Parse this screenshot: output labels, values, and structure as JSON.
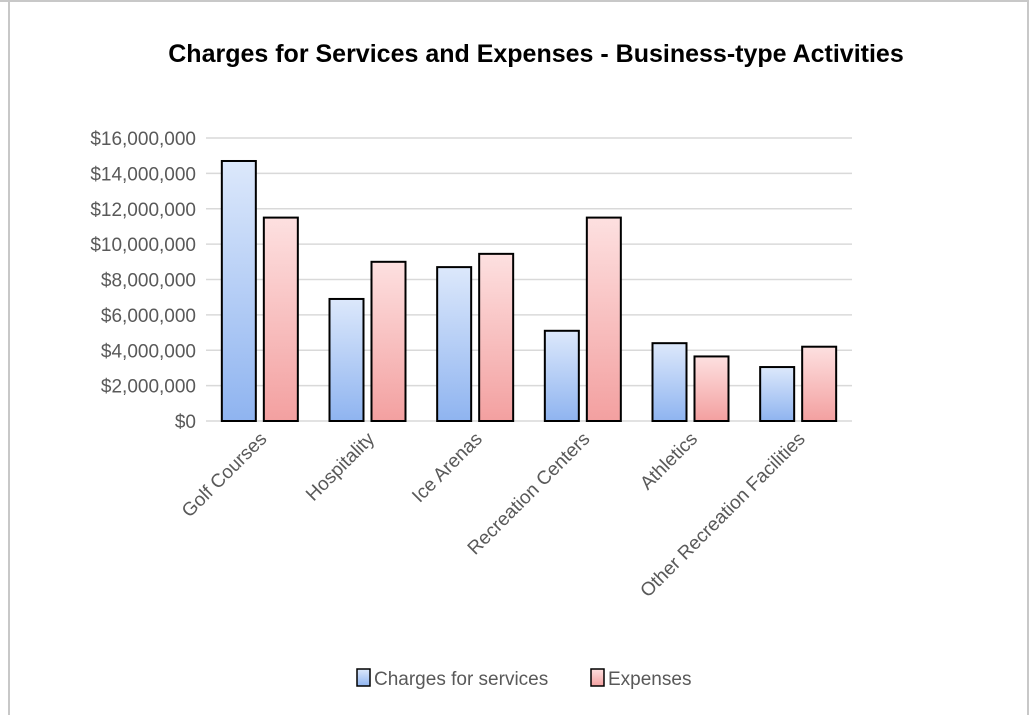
{
  "chart_data": {
    "type": "bar",
    "title": "Charges for Services and Expenses - Business-type  Activities",
    "xlabel": "",
    "ylabel": "",
    "categories": [
      "Golf Courses",
      "Hospitality",
      "Ice Arenas",
      "Recreation Centers",
      "Athletics",
      "Other Recreation Facilities"
    ],
    "series": [
      {
        "name": "Charges for services",
        "values": [
          14700000,
          6900000,
          8700000,
          5100000,
          4400000,
          3050000
        ]
      },
      {
        "name": "Expenses",
        "values": [
          11500000,
          9000000,
          9450000,
          11500000,
          3650000,
          4200000
        ]
      }
    ],
    "ylim": [
      0,
      16000000
    ],
    "yticks": [
      {
        "value": 0,
        "label": "$0"
      },
      {
        "value": 2000000,
        "label": "$2,000,000"
      },
      {
        "value": 4000000,
        "label": "$4,000,000"
      },
      {
        "value": 6000000,
        "label": "$6,000,000"
      },
      {
        "value": 8000000,
        "label": "$8,000,000"
      },
      {
        "value": 10000000,
        "label": "$10,000,000"
      },
      {
        "value": 12000000,
        "label": "$12,000,000"
      },
      {
        "value": 14000000,
        "label": "$14,000,000"
      },
      {
        "value": 16000000,
        "label": "$16,000,000"
      }
    ],
    "grid": true,
    "legend_position": "bottom",
    "colors": {
      "charges_top": "#dce8fb",
      "charges_bottom": "#8fb4f0",
      "expenses_top": "#fde0e0",
      "expenses_bottom": "#f3a0a0",
      "bar_stroke": "#000000",
      "grid": "#d9d9d9"
    }
  }
}
